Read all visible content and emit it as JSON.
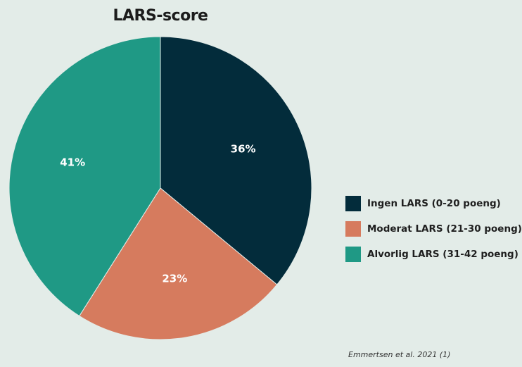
{
  "chart_data": {
    "type": "pie",
    "title": "LARS-score",
    "categories": [
      "Ingen LARS (0-20 poeng)",
      "Moderat LARS (21-30 poeng)",
      "Alvorlig LARS (31-42 poeng)"
    ],
    "values": [
      36,
      23,
      41
    ],
    "value_labels": [
      "36%",
      "23%",
      "41%"
    ],
    "colors": [
      "#032c3b",
      "#d67b5e",
      "#1f9985"
    ],
    "legend_position": "right",
    "source": "Emmertsen et al. 2021 (1)"
  }
}
